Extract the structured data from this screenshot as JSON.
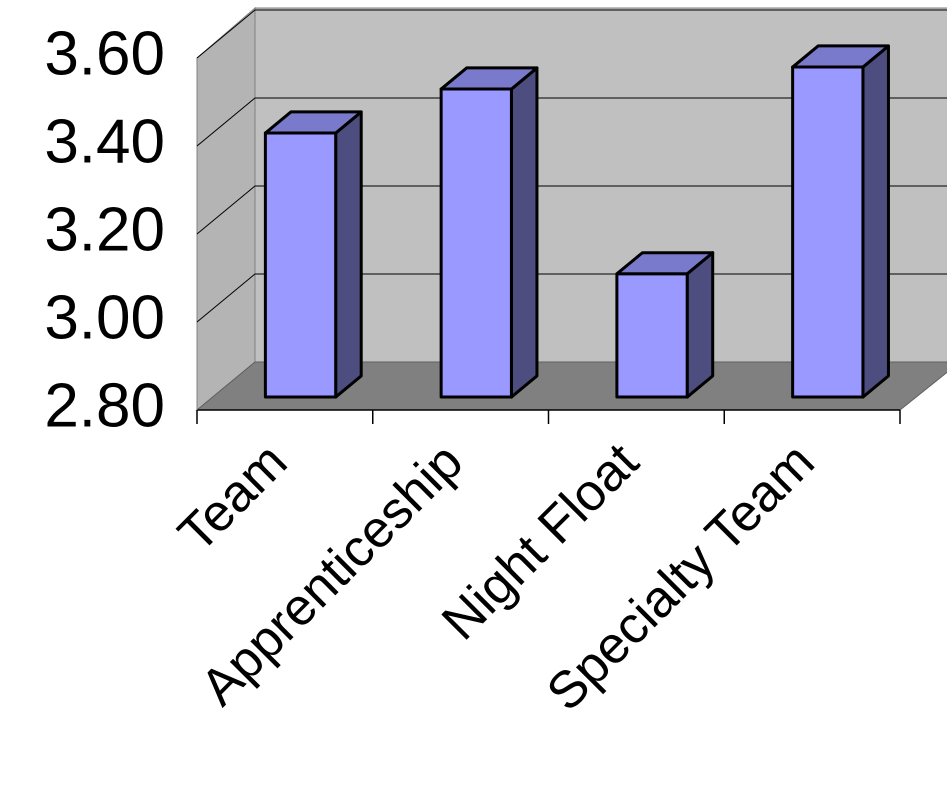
{
  "chart_data": {
    "type": "bar3d",
    "categories": [
      "Team",
      "Apprenticeship",
      "Night Float",
      "Specialty Team"
    ],
    "values": [
      3.4,
      3.5,
      3.08,
      3.55
    ],
    "color": "#9999ff",
    "ylim": [
      2.8,
      3.6
    ],
    "yticks": [
      {
        "value": 2.8,
        "label": "2.80"
      },
      {
        "value": 3.0,
        "label": "3.00"
      },
      {
        "value": 3.2,
        "label": "3.20"
      },
      {
        "value": 3.4,
        "label": "3.40"
      },
      {
        "value": 3.6,
        "label": "3.60"
      }
    ],
    "grid": true
  }
}
